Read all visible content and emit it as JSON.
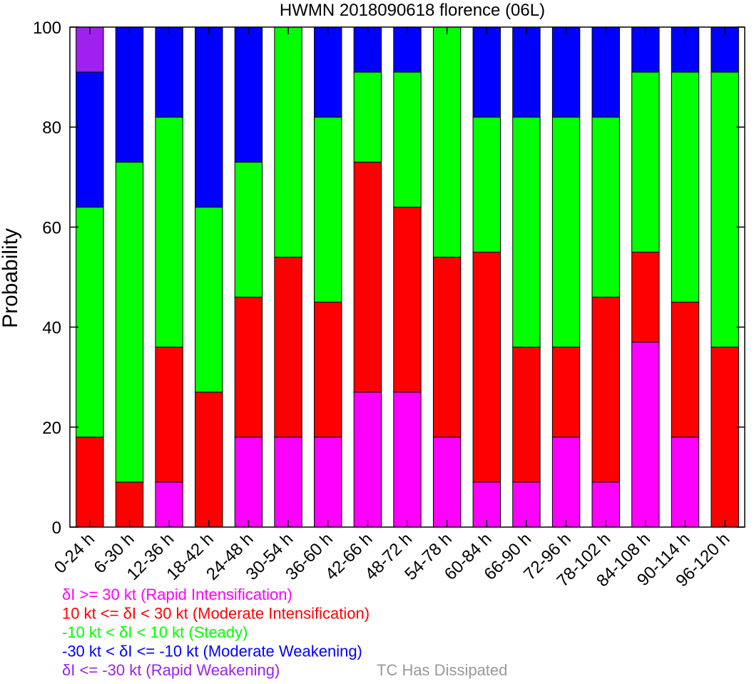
{
  "chart_data": {
    "type": "bar",
    "stacked": true,
    "title": "HWMN 2018090618 florence (06L)",
    "xlabel": "",
    "ylabel": "Probability",
    "ylim": [
      0,
      100
    ],
    "yticks": [
      0,
      20,
      40,
      60,
      80,
      100
    ],
    "grid": false,
    "categories": [
      "0-24 h",
      "6-30 h",
      "12-36 h",
      "18-42 h",
      "24-48 h",
      "30-54 h",
      "36-60 h",
      "42-66 h",
      "48-72 h",
      "54-78 h",
      "60-84 h",
      "66-90 h",
      "72-96 h",
      "78-102 h",
      "84-108 h",
      "90-114 h",
      "96-120 h"
    ],
    "series": [
      {
        "key": "ri",
        "color": "#ff00ff",
        "values": [
          0,
          0,
          9,
          0,
          18,
          18,
          18,
          27,
          27,
          18,
          9,
          9,
          18,
          9,
          37,
          18,
          0
        ]
      },
      {
        "key": "mi",
        "color": "#ff0000",
        "values": [
          18,
          9,
          27,
          27,
          28,
          36,
          27,
          46,
          37,
          36,
          46,
          27,
          18,
          37,
          18,
          27,
          36
        ]
      },
      {
        "key": "steady",
        "color": "#00ff00",
        "values": [
          46,
          64,
          46,
          37,
          27,
          46,
          37,
          18,
          27,
          46,
          27,
          46,
          46,
          36,
          36,
          46,
          55
        ]
      },
      {
        "key": "mw",
        "color": "#0000ff",
        "values": [
          27,
          27,
          18,
          36,
          27,
          0,
          18,
          9,
          9,
          0,
          18,
          18,
          18,
          18,
          9,
          9,
          9
        ]
      },
      {
        "key": "rw",
        "color": "#a020f0",
        "values": [
          9,
          0,
          0,
          0,
          0,
          0,
          0,
          0,
          0,
          0,
          0,
          0,
          0,
          0,
          0,
          0,
          0
        ]
      }
    ],
    "legend": {
      "placement": "bottom-left",
      "entries": [
        {
          "text": "δI >= 30 kt (Rapid Intensification)",
          "color": "#ff00ff"
        },
        {
          "text": "10 kt <= δI < 30 kt (Moderate Intensification)",
          "color": "#ff0000"
        },
        {
          "text": "-10 kt < δI < 10 kt (Steady)",
          "color": "#00ff00"
        },
        {
          "text": "-30 kt < δI <= -10 kt (Moderate Weakening)",
          "color": "#0000ff"
        },
        {
          "text": "δI <= -30 kt (Rapid Weakening)",
          "color": "#a020f0"
        }
      ],
      "dissipated": {
        "text": "TC Has Dissipated",
        "color": "#999999"
      }
    }
  }
}
